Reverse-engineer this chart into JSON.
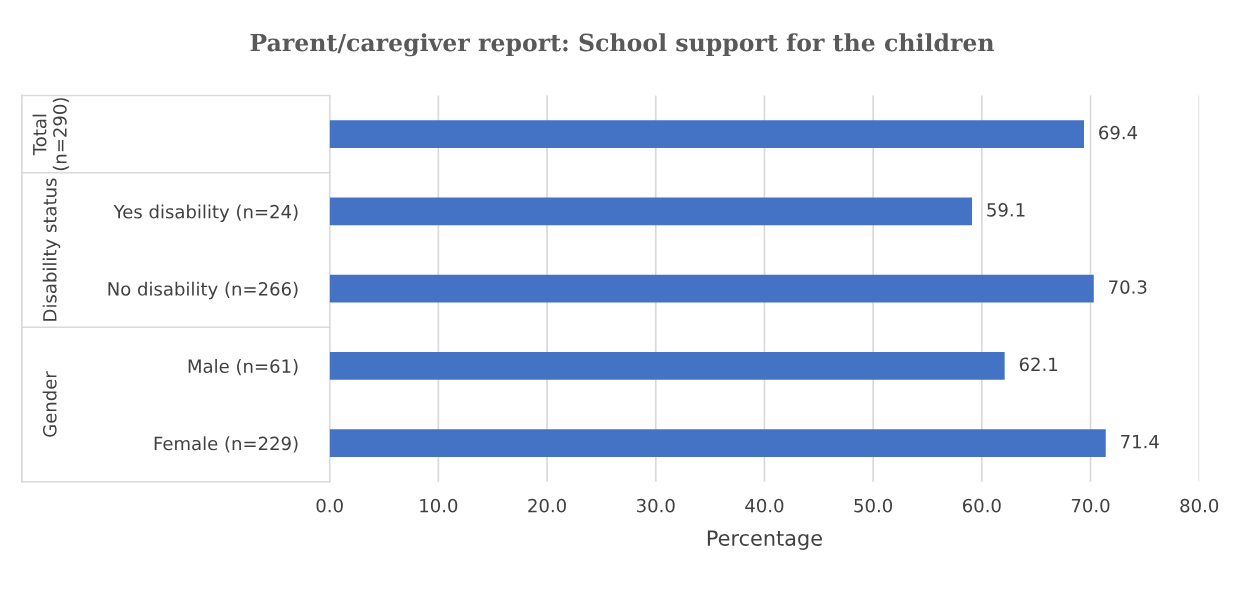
{
  "chart_data": {
    "type": "bar",
    "orientation": "horizontal",
    "title": "Parent/caregiver report: School support for the children",
    "xlabel": "Percentage",
    "categories": [
      null,
      "Yes disability (n=24)",
      "No disability (n=266)",
      "Male (n=61)",
      "Female (n=229)"
    ],
    "values": [
      69.4,
      59.1,
      70.3,
      62.1,
      71.4
    ],
    "color": "#4472c4",
    "data_labels": true,
    "xlim": [
      0,
      80
    ],
    "xticks": [
      {
        "value": 0,
        "label": "0.0"
      },
      {
        "value": 10,
        "label": "10.0"
      },
      {
        "value": 20,
        "label": "20.0"
      },
      {
        "value": 30,
        "label": "30.0"
      },
      {
        "value": 40,
        "label": "40.0"
      },
      {
        "value": 50,
        "label": "50.0"
      },
      {
        "value": 60,
        "label": "60.0"
      },
      {
        "value": 70,
        "label": "70.0"
      },
      {
        "value": 80,
        "label": "80.0"
      }
    ],
    "grid": "x",
    "annotations": [
      "Total\n(n=290)",
      "Disability status",
      "Gender"
    ]
  }
}
